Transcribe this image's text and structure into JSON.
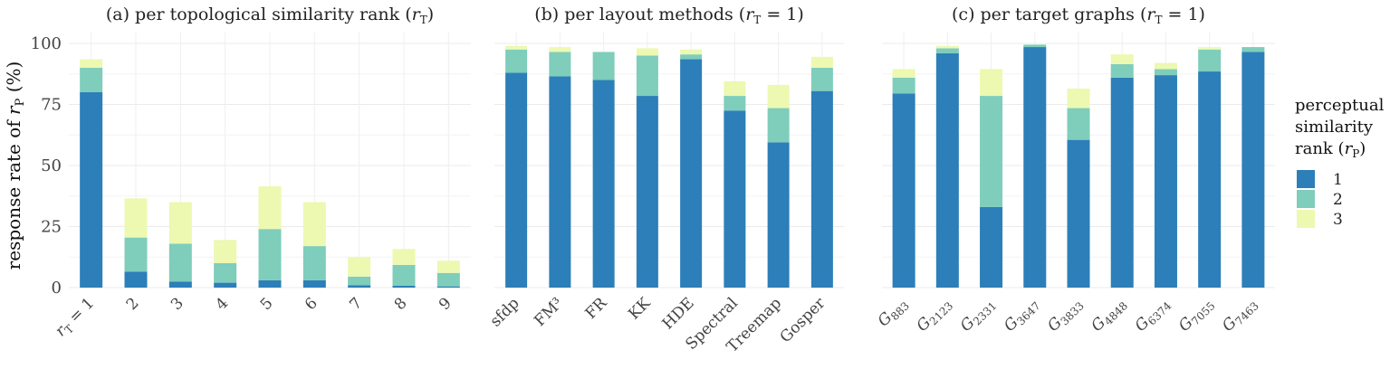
{
  "chart_data": {
    "type": "bar",
    "stacked": true,
    "ylabel": "response rate of r_P (%)",
    "ylim": [
      0,
      100
    ],
    "yticks": [
      0,
      25,
      50,
      75,
      100
    ],
    "grid": true,
    "legend": {
      "title_lines": [
        "perceptual",
        "similarity",
        "rank (r_P)"
      ],
      "placement": "right",
      "items": [
        {
          "name": "1",
          "color": "#2c7fb8"
        },
        {
          "name": "2",
          "color": "#7fcdbb"
        },
        {
          "name": "3",
          "color": "#edf8b1"
        }
      ]
    },
    "panels": [
      {
        "title": "(a) per topological similarity rank (r_T)",
        "categories": [
          "r_T = 1",
          "2",
          "3",
          "4",
          "5",
          "6",
          "7",
          "8",
          "9"
        ],
        "series": [
          {
            "name": "1",
            "values": [
              80,
              6.5,
              2.5,
              2,
              3,
              3,
              1,
              0.8,
              0.5
            ]
          },
          {
            "name": "2",
            "values": [
              10,
              14,
              15.5,
              8,
              21,
              14,
              3.5,
              8.5,
              5.5
            ]
          },
          {
            "name": "3",
            "values": [
              3.5,
              16,
              17,
              9.5,
              17.5,
              18,
              8,
              6.5,
              5
            ]
          }
        ]
      },
      {
        "title": "(b) per layout methods (r_T = 1)",
        "categories": [
          "sfdp",
          "FM³",
          "FR",
          "KK",
          "HDE",
          "Spectral",
          "Treemap",
          "Gosper"
        ],
        "series": [
          {
            "name": "1",
            "values": [
              88,
              86.5,
              85,
              78.5,
              93.5,
              72.5,
              59.5,
              80.5
            ]
          },
          {
            "name": "2",
            "values": [
              9.5,
              10,
              11.5,
              16.5,
              2,
              6,
              14,
              9.5
            ]
          },
          {
            "name": "3",
            "values": [
              1.5,
              2,
              0,
              3,
              2,
              6,
              9.5,
              4.5
            ]
          }
        ]
      },
      {
        "title": "(c) per target graphs (r_T = 1)",
        "categories": [
          "G883",
          "G2123",
          "G2331",
          "G3647",
          "G3833",
          "G4848",
          "G6374",
          "G7055",
          "G7463"
        ],
        "series": [
          {
            "name": "1",
            "values": [
              79.5,
              96,
              33,
              98.5,
              60.5,
              86,
              87,
              88.5,
              96.5
            ]
          },
          {
            "name": "2",
            "values": [
              6.5,
              2,
              45.5,
              1,
              13,
              5.5,
              2.5,
              9,
              2
            ]
          },
          {
            "name": "3",
            "values": [
              3.5,
              1,
              11,
              0,
              8,
              4,
              2.5,
              1,
              0
            ]
          }
        ]
      }
    ]
  }
}
